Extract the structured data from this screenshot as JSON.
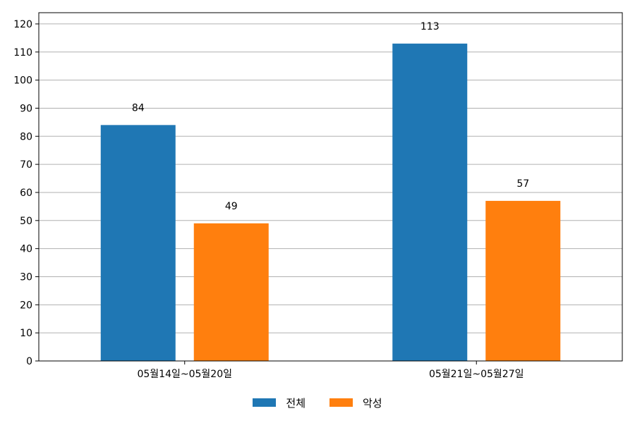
{
  "chart_data": {
    "type": "bar",
    "categories": [
      "05월14일~05월20일",
      "05월21일~05월27일"
    ],
    "series": [
      {
        "name": "전체",
        "values": [
          84,
          113
        ],
        "color": "#1f77b4"
      },
      {
        "name": "악성",
        "values": [
          49,
          57
        ],
        "color": "#ff7f0e"
      }
    ],
    "ylim": [
      0,
      124
    ],
    "yticks": [
      0,
      10,
      20,
      30,
      40,
      50,
      60,
      70,
      80,
      90,
      100,
      110,
      120
    ],
    "grid": true,
    "legend_position": "bottom-center",
    "title": "",
    "xlabel": "",
    "ylabel": ""
  }
}
